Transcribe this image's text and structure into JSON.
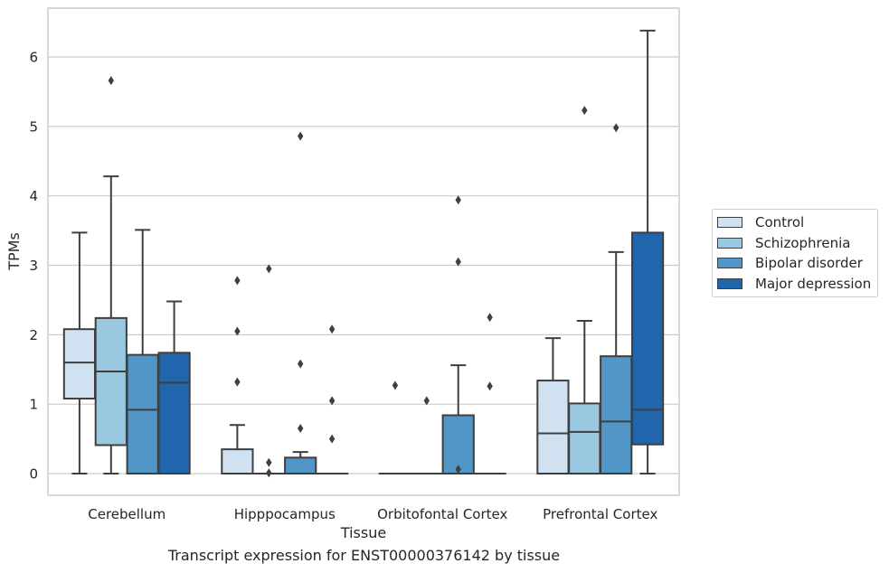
{
  "chart_data": {
    "type": "boxplot",
    "xlabel": "Tissue",
    "ylabel": "TPMs",
    "caption": "Transcript expression for ENST00000376142 by tissue",
    "ylim": [
      -0.3,
      6.7
    ],
    "yticks": [
      0,
      1,
      2,
      3,
      4,
      5,
      6
    ],
    "grid": "horizontal",
    "legend_position": "right",
    "categories": [
      "Cerebellum",
      "Hipppocampus",
      "Orbitofontal Cortex",
      "Prefrontal Cortex"
    ],
    "series": [
      {
        "name": "Control",
        "color": "#d0e1f2",
        "boxes": [
          {
            "whislo": 0.0,
            "q1": 1.08,
            "med": 1.6,
            "q3": 2.08,
            "whishi": 3.47,
            "fliers": []
          },
          {
            "whislo": 0.0,
            "q1": 0.0,
            "med": 0.0,
            "q3": 0.35,
            "whishi": 0.7,
            "fliers": [
              1.32,
              2.05,
              2.78
            ]
          },
          {
            "whislo": 0.0,
            "q1": 0.0,
            "med": 0.0,
            "q3": 0.0,
            "whishi": 0.0,
            "fliers": [
              1.27
            ]
          },
          {
            "whislo": 0.0,
            "q1": 0.0,
            "med": 0.58,
            "q3": 1.34,
            "whishi": 1.95,
            "fliers": []
          }
        ]
      },
      {
        "name": "Schizophrenia",
        "color": "#9ac8e0",
        "boxes": [
          {
            "whislo": 0.0,
            "q1": 0.41,
            "med": 1.47,
            "q3": 2.24,
            "whishi": 4.28,
            "fliers": [
              5.66
            ]
          },
          {
            "whislo": 0.0,
            "q1": 0.0,
            "med": 0.0,
            "q3": 0.0,
            "whishi": 0.0,
            "fliers": [
              0.01,
              0.16,
              2.95
            ]
          },
          {
            "whislo": 0.0,
            "q1": 0.0,
            "med": 0.0,
            "q3": 0.0,
            "whishi": 0.0,
            "fliers": [
              1.05
            ]
          },
          {
            "whislo": 0.0,
            "q1": 0.0,
            "med": 0.6,
            "q3": 1.01,
            "whishi": 2.2,
            "fliers": [
              5.23
            ]
          }
        ]
      },
      {
        "name": "Bipolar disorder",
        "color": "#5296c7",
        "boxes": [
          {
            "whislo": 0.0,
            "q1": 0.0,
            "med": 0.92,
            "q3": 1.71,
            "whishi": 3.51,
            "fliers": []
          },
          {
            "whislo": 0.0,
            "q1": 0.0,
            "med": 0.0,
            "q3": 0.23,
            "whishi": 0.31,
            "fliers": [
              0.65,
              1.58,
              4.86
            ]
          },
          {
            "whislo": 0.0,
            "q1": 0.0,
            "med": 0.0,
            "q3": 0.84,
            "whishi": 1.56,
            "fliers": [
              0.06,
              3.05,
              3.94
            ]
          },
          {
            "whislo": 0.0,
            "q1": 0.0,
            "med": 0.75,
            "q3": 1.69,
            "whishi": 3.19,
            "fliers": [
              4.98
            ]
          }
        ]
      },
      {
        "name": "Major depression",
        "color": "#2166ac",
        "boxes": [
          {
            "whislo": 0.0,
            "q1": 0.0,
            "med": 1.31,
            "q3": 1.74,
            "whishi": 2.48,
            "fliers": []
          },
          {
            "whislo": 0.0,
            "q1": 0.0,
            "med": 0.0,
            "q3": 0.0,
            "whishi": 0.0,
            "fliers": [
              0.5,
              1.05,
              2.08
            ]
          },
          {
            "whislo": 0.0,
            "q1": 0.0,
            "med": 0.0,
            "q3": 0.0,
            "whishi": 0.0,
            "fliers": [
              1.26,
              2.25
            ]
          },
          {
            "whislo": 0.0,
            "q1": 0.42,
            "med": 0.92,
            "q3": 3.47,
            "whishi": 6.38,
            "fliers": []
          }
        ]
      }
    ]
  }
}
